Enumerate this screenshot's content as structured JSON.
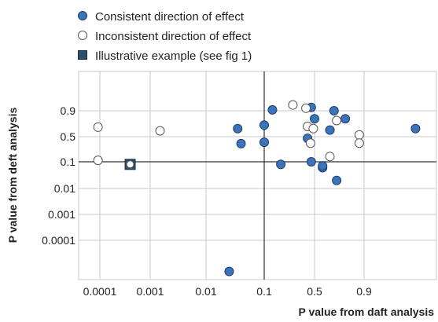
{
  "chart_data": {
    "type": "scatter",
    "xlabel": "P value from daft analysis",
    "ylabel": "P value from deft analysis",
    "x_ticks": [
      "0.0001",
      "0.001",
      "0.01",
      "0.1",
      "0.5",
      "0.9"
    ],
    "y_ticks": [
      "0.9",
      "0.5",
      "0.1",
      "0.01",
      "0.001",
      "0.0001"
    ],
    "scale": "probability (tail-transformed)",
    "reference_lines": {
      "x": 0.1,
      "y": 0.1
    },
    "legend": {
      "position": "top-left",
      "entries": [
        {
          "key": "consistent",
          "label": "Consistent direction of effect",
          "marker": "filled-circle"
        },
        {
          "key": "inconsistent",
          "label": "Inconsistent direction of effect",
          "marker": "open-circle"
        },
        {
          "key": "example",
          "label": "Illustrative example (see fig 1)",
          "marker": "square"
        }
      ]
    },
    "colors": {
      "consistent_fill": "#3d73b8",
      "consistent_stroke": "#1d3f6e",
      "inconsistent_fill": "#ffffff",
      "inconsistent_stroke": "#555555",
      "example_fill": "#2f4f6f",
      "grid": "#c8c8c8",
      "reference": "#333333"
    },
    "series": [
      {
        "name": "Consistent direction of effect",
        "key": "consistent",
        "points": [
          [
            0.035,
            0.6
          ],
          [
            0.04,
            0.32
          ],
          [
            0.1,
            0.65
          ],
          [
            0.1,
            0.35
          ],
          [
            0.13,
            0.91
          ],
          [
            0.17,
            0.08
          ],
          [
            0.025,
            1e-06
          ],
          [
            0.4,
            0.45
          ],
          [
            0.45,
            0.94
          ],
          [
            0.5,
            0.75
          ],
          [
            0.45,
            0.1
          ],
          [
            0.55,
            0.06
          ],
          [
            0.55,
            0.07
          ],
          [
            0.6,
            0.58
          ],
          [
            0.63,
            0.9
          ],
          [
            0.65,
            0.02
          ],
          [
            0.72,
            0.75
          ],
          [
            0.97,
            0.6
          ]
        ]
      },
      {
        "name": "Inconsistent direction of effect",
        "key": "inconsistent",
        "points": [
          [
            9e-05,
            0.62
          ],
          [
            9e-05,
            0.11
          ],
          [
            0.0015,
            0.57
          ],
          [
            0.25,
            0.97
          ],
          [
            0.38,
            0.93
          ],
          [
            0.4,
            0.63
          ],
          [
            0.44,
            0.33
          ],
          [
            0.48,
            0.6
          ],
          [
            0.6,
            0.14
          ],
          [
            0.65,
            0.72
          ],
          [
            0.85,
            0.52
          ],
          [
            0.85,
            0.33
          ],
          [
            0.0004,
            0.08
          ]
        ]
      },
      {
        "name": "Illustrative example (see fig 1)",
        "key": "example",
        "points": [
          [
            0.0004,
            0.08
          ]
        ]
      }
    ]
  }
}
